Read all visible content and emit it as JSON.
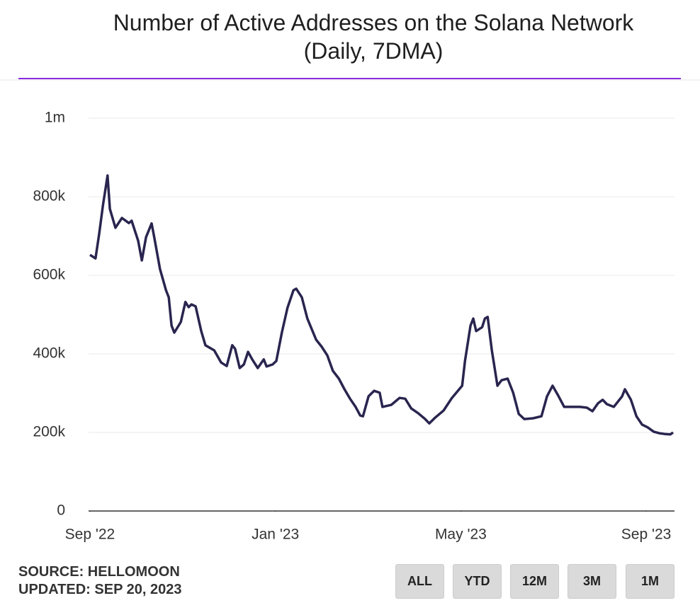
{
  "chart_data": {
    "type": "line",
    "title": "Number of Active Addresses on the Solana Network (Daily, 7DMA)",
    "x": [
      0,
      0.12,
      0.2,
      0.28,
      0.38,
      0.43,
      0.55,
      0.69,
      0.84,
      0.9,
      1.04,
      1.12,
      1.21,
      1.33,
      1.39,
      1.51,
      1.64,
      1.7,
      1.76,
      1.82,
      1.96,
      2.06,
      2.13,
      2.19,
      2.28,
      2.4,
      2.49,
      2.68,
      2.83,
      2.95,
      3.07,
      3.13,
      3.23,
      3.32,
      3.41,
      3.5,
      3.62,
      3.75,
      3.81,
      3.94,
      4.02,
      4.14,
      4.26,
      4.39,
      4.45,
      4.57,
      4.69,
      4.88,
      5,
      5.12,
      5.24,
      5.37,
      5.49,
      5.61,
      5.73,
      5.83,
      5.89,
      6.01,
      6.13,
      6.25,
      6.31,
      6.5,
      6.68,
      6.8,
      6.93,
      7.08,
      7.23,
      7.32,
      7.45,
      7.63,
      7.81,
      8.03,
      8.09,
      8.21,
      8.27,
      8.33,
      8.46,
      8.52,
      8.58,
      8.67,
      8.79,
      8.88,
      9.01,
      9.13,
      9.25,
      9.37,
      9.56,
      9.74,
      9.86,
      9.98,
      10.11,
      10.23,
      10.38,
      10.57,
      10.72,
      10.84,
      10.96,
      11.06,
      11.15,
      11.3,
      11.48,
      11.54,
      11.67,
      11.79,
      11.91,
      12.03,
      12.16,
      12.28,
      12.4,
      12.52,
      12.58
    ],
    "series": [
      {
        "name": "Active Addresses",
        "color": "#29254f",
        "values": [
          652000,
          643000,
          706000,
          778000,
          854000,
          769000,
          721000,
          746000,
          733000,
          739000,
          688000,
          638000,
          697000,
          732000,
          695000,
          616000,
          562000,
          544000,
          472000,
          454000,
          481000,
          532000,
          519000,
          526000,
          521000,
          458000,
          422000,
          409000,
          378000,
          369000,
          422000,
          413000,
          364000,
          373000,
          405000,
          386000,
          364000,
          386000,
          368000,
          373000,
          382000,
          454000,
          517000,
          562000,
          566000,
          544000,
          490000,
          436000,
          418000,
          396000,
          357000,
          337000,
          310000,
          286000,
          265000,
          243000,
          241000,
          292000,
          306000,
          301000,
          265000,
          270000,
          288000,
          286000,
          261000,
          249000,
          234000,
          223000,
          238000,
          256000,
          288000,
          319000,
          382000,
          472000,
          490000,
          458000,
          468000,
          490000,
          494000,
          409000,
          319000,
          333000,
          337000,
          301000,
          247000,
          234000,
          236000,
          241000,
          292000,
          319000,
          292000,
          265000,
          265000,
          265000,
          263000,
          254000,
          274000,
          283000,
          272000,
          265000,
          292000,
          310000,
          283000,
          241000,
          220000,
          213000,
          202000,
          198000,
          196000,
          195000,
          200000
        ]
      }
    ],
    "xlim": [
      -0.03,
      12.61
    ],
    "xticks": [
      {
        "value": 0,
        "label": "Sep '22"
      },
      {
        "value": 4,
        "label": "Jan '23"
      },
      {
        "value": 8,
        "label": "May '23"
      },
      {
        "value": 12,
        "label": "Sep '23"
      }
    ],
    "ylim": [
      0,
      1000000
    ],
    "yticks": [
      {
        "value": 0,
        "label": "0"
      },
      {
        "value": 200000,
        "label": "200k"
      },
      {
        "value": 400000,
        "label": "400k"
      },
      {
        "value": 600000,
        "label": "600k"
      },
      {
        "value": 800000,
        "label": "800k"
      },
      {
        "value": 1000000,
        "label": "1m"
      }
    ],
    "grid": true
  },
  "source": "SOURCE: HELLOMOON",
  "updated": "UPDATED: SEP 20, 2023",
  "buttons": [
    "ALL",
    "YTD",
    "12M",
    "3M",
    "1M"
  ]
}
